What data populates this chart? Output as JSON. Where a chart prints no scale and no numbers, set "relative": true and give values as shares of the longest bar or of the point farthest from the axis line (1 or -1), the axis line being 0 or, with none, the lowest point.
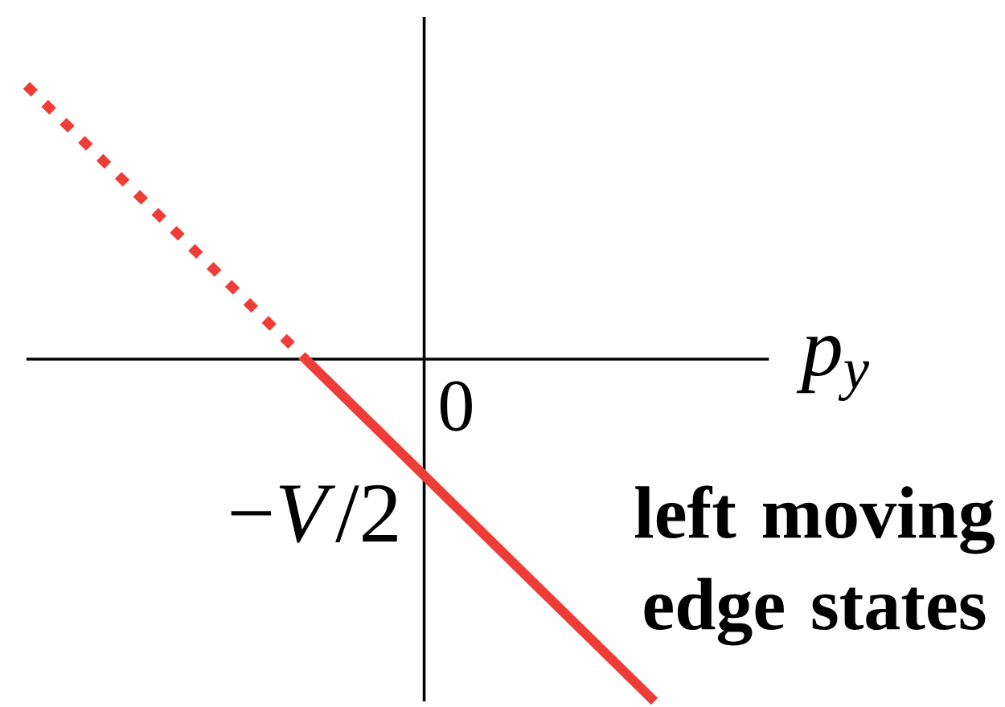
{
  "chart_data": {
    "type": "line",
    "relative": true,
    "xlabel": "p$_{y}$",
    "categories": [
      null,
      null,
      null,
      null,
      null,
      null,
      null,
      null,
      null,
      null
    ],
    "series": [
      {
        "values": [
          0.8,
          0.6,
          0.4,
          0.2,
          0,
          null,
          null,
          null,
          null,
          null
        ],
        "color": "#ee3d36",
        "line_style": "dotted"
      },
      {
        "name": "left moving edge states",
        "values": [
          null,
          null,
          null,
          null,
          0,
          -0.2,
          -0.4,
          -0.6,
          -0.8,
          -1
        ],
        "color": "#ee3d36",
        "line_style": "solid"
      }
    ],
    "annotations": [
      "0",
      "−*V*/2"
    ]
  }
}
